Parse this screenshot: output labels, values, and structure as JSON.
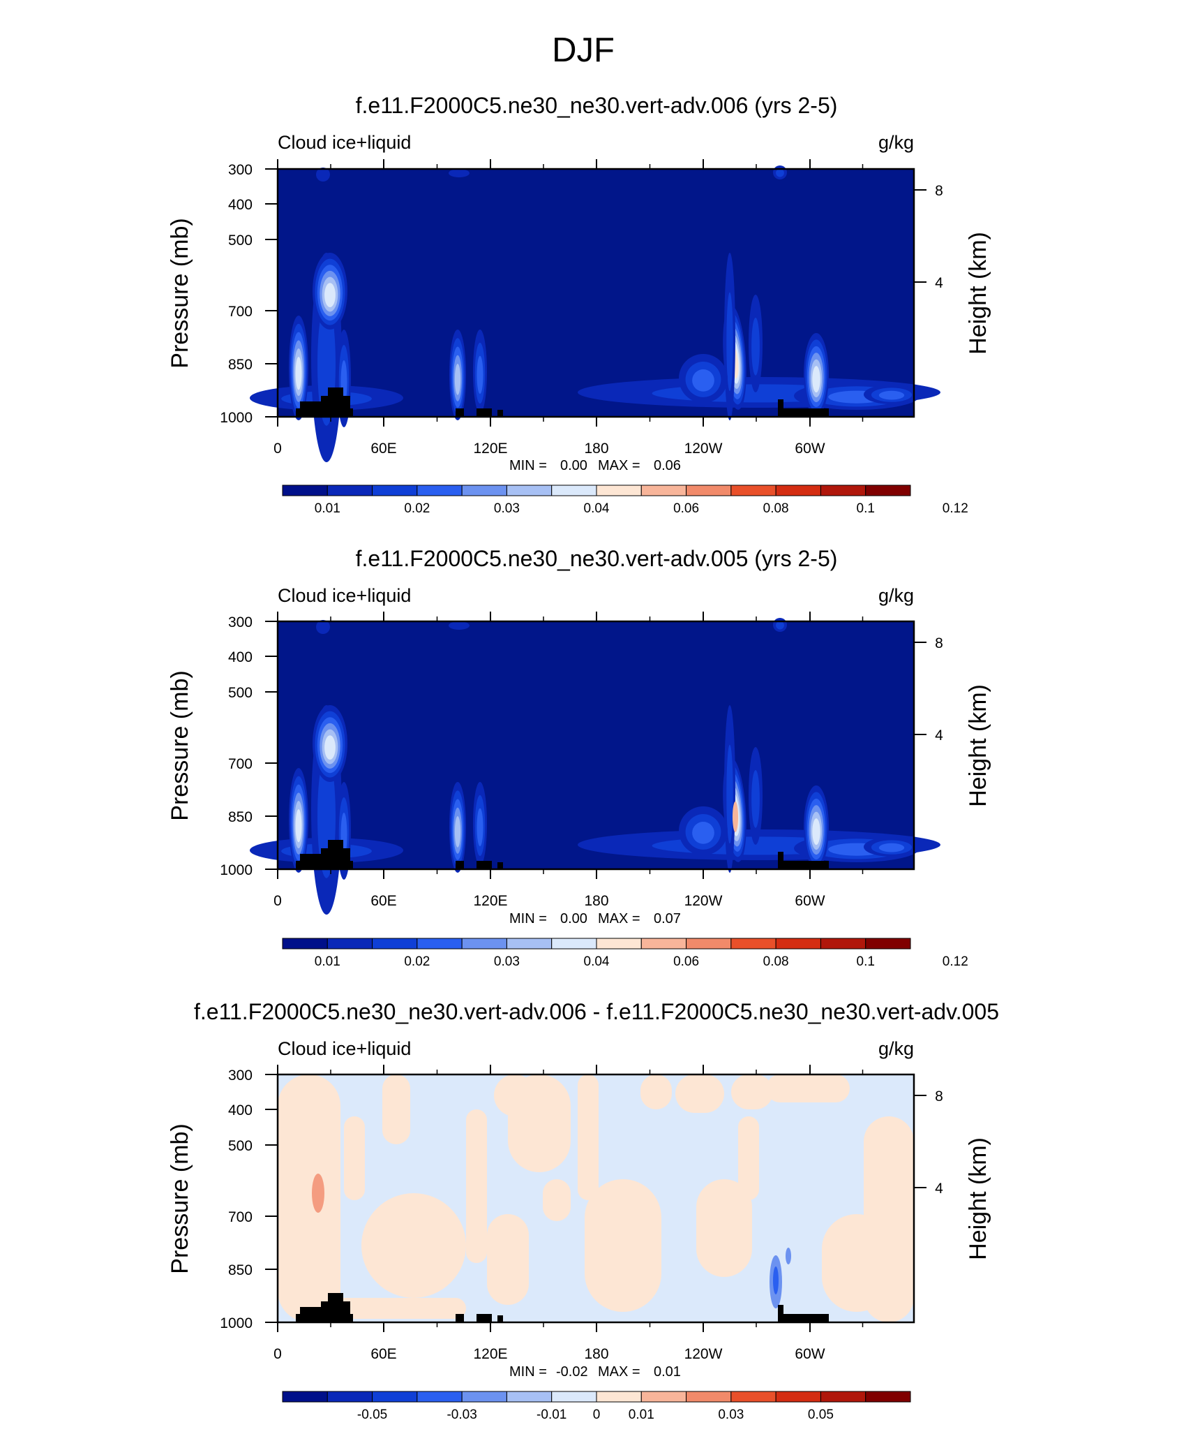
{
  "page": {
    "title": "DJF"
  },
  "colors": {
    "background_field": "#01168a",
    "topography": "#000000",
    "abs_palette": [
      "#00108a",
      "#0a28b8",
      "#0f3fd6",
      "#2a5ff0",
      "#6c92f0",
      "#a7c0f4",
      "#dbe9fb",
      "#fde6d4",
      "#f8b59a",
      "#f18a6a",
      "#e9502a",
      "#d42d12",
      "#b0170b",
      "#800000"
    ],
    "diff_palette": [
      "#00108a",
      "#0a28b8",
      "#0f3fd6",
      "#2a5ff0",
      "#6c92f0",
      "#a7c0f4",
      "#dbe9fb",
      "#fde6d4",
      "#f8b59a",
      "#f18a6a",
      "#e9502a",
      "#d42d12",
      "#b0170b",
      "#800000"
    ]
  },
  "chart_data": [
    {
      "type": "heatmap",
      "title": "f.e11.F2000C5.ne30_ne30.vert-adv.006 (yrs 2-5)",
      "left_label": "Cloud ice+liquid",
      "right_label": "g/kg",
      "xlabel": "",
      "ylabel": "Pressure (mb)",
      "y2label": "Height (km)",
      "x_ticks": [
        "0",
        "60E",
        "120E",
        "180",
        "120W",
        "60W"
      ],
      "y_ticks": [
        "300",
        "400",
        "500",
        "700",
        "850",
        "1000"
      ],
      "y2_ticks": [
        "8",
        "4"
      ],
      "stats": {
        "min_label": "MIN =",
        "min": "0.00",
        "max_label": "MAX =",
        "max": "0.06"
      },
      "colorbar_labels": [
        "0.01",
        "0.02",
        "0.03",
        "0.04",
        "0.06",
        "0.08",
        "0.1",
        "0.12"
      ]
    },
    {
      "type": "heatmap",
      "title": "f.e11.F2000C5.ne30_ne30.vert-adv.005 (yrs 2-5)",
      "left_label": "Cloud ice+liquid",
      "right_label": "g/kg",
      "xlabel": "",
      "ylabel": "Pressure (mb)",
      "y2label": "Height (km)",
      "x_ticks": [
        "0",
        "60E",
        "120E",
        "180",
        "120W",
        "60W"
      ],
      "y_ticks": [
        "300",
        "400",
        "500",
        "700",
        "850",
        "1000"
      ],
      "y2_ticks": [
        "8",
        "4"
      ],
      "stats": {
        "min_label": "MIN =",
        "min": "0.00",
        "max_label": "MAX =",
        "max": "0.07"
      },
      "colorbar_labels": [
        "0.01",
        "0.02",
        "0.03",
        "0.04",
        "0.06",
        "0.08",
        "0.1",
        "0.12"
      ]
    },
    {
      "type": "heatmap",
      "title": "f.e11.F2000C5.ne30_ne30.vert-adv.006 - f.e11.F2000C5.ne30_ne30.vert-adv.005",
      "left_label": "Cloud ice+liquid",
      "right_label": "g/kg",
      "xlabel": "",
      "ylabel": "Pressure (mb)",
      "y2label": "Height (km)",
      "x_ticks": [
        "0",
        "60E",
        "120E",
        "180",
        "120W",
        "60W"
      ],
      "y_ticks": [
        "300",
        "400",
        "500",
        "700",
        "850",
        "1000"
      ],
      "y2_ticks": [
        "8",
        "4"
      ],
      "stats": {
        "min_label": "MIN =",
        "min": "-0.02",
        "max_label": "MAX =",
        "max": "0.01"
      },
      "colorbar_labels": [
        "-0.05",
        "-0.03",
        "-0.01",
        "0",
        "0.01",
        "0.03",
        "0.05"
      ]
    }
  ]
}
